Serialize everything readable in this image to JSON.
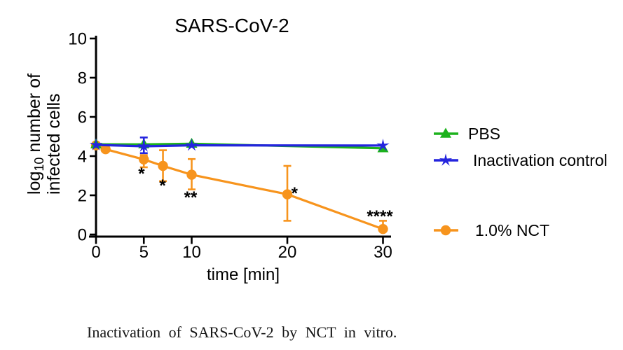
{
  "figure": {
    "caption": "Inactivation of SARS-CoV-2 by NCT in vitro."
  },
  "chart_data": {
    "type": "line",
    "title": "SARS-CoV-2",
    "xlabel": "time [min]",
    "ylabel": {
      "pre": "log",
      "sub": "10",
      "post": "number of",
      "line2": "infected cells"
    },
    "xlim": [
      0,
      31
    ],
    "ylim": [
      0,
      10
    ],
    "xticks": [
      0,
      5,
      10,
      20,
      30
    ],
    "yticks": [
      0,
      2,
      4,
      6,
      8,
      10
    ],
    "grid": false,
    "legend_position": "right",
    "series": [
      {
        "name": "1.0% NCT",
        "color": "#F7941D",
        "marker": "circle",
        "x": [
          0,
          1,
          5,
          7,
          10,
          20,
          30
        ],
        "y": [
          4.55,
          4.35,
          3.83,
          3.5,
          3.05,
          2.05,
          0.28
        ],
        "err_plus": [
          0,
          0,
          0.22,
          0.8,
          0.8,
          1.45,
          0.42
        ],
        "err_minus": [
          0,
          0,
          0.4,
          0.78,
          0.75,
          1.35,
          0
        ]
      },
      {
        "name": "PBS",
        "color": "#1CB21C",
        "marker": "triangle",
        "x": [
          0,
          5,
          10,
          30
        ],
        "y": [
          4.6,
          4.6,
          4.63,
          4.4
        ],
        "err_plus": [
          0,
          0,
          0,
          0
        ],
        "err_minus": [
          0,
          0,
          0,
          0
        ]
      },
      {
        "name": "Inactivation control",
        "color": "#2424DE",
        "marker": "star",
        "x": [
          0,
          5,
          10,
          30
        ],
        "y": [
          4.57,
          4.5,
          4.55,
          4.54
        ],
        "err_plus": [
          0,
          0.45,
          0,
          0
        ],
        "err_minus": [
          0,
          0.35,
          0,
          0
        ]
      }
    ],
    "significance": [
      {
        "label": "*",
        "x": 4.76,
        "y": 2.82
      },
      {
        "label": "*",
        "x": 6.96,
        "y": 2.21
      },
      {
        "label": "**",
        "x": 9.89,
        "y": 1.61
      },
      {
        "label": "*",
        "x": 20.75,
        "y": 1.82
      },
      {
        "label": "****",
        "x": 29.67,
        "y": 0.64
      }
    ],
    "legend": [
      {
        "label": "PBS",
        "series": "PBS"
      },
      {
        "label": "Inactivation control",
        "series": "Inactivation control"
      },
      {
        "label": "1.0% NCT",
        "series": "1.0% NCT"
      }
    ]
  }
}
